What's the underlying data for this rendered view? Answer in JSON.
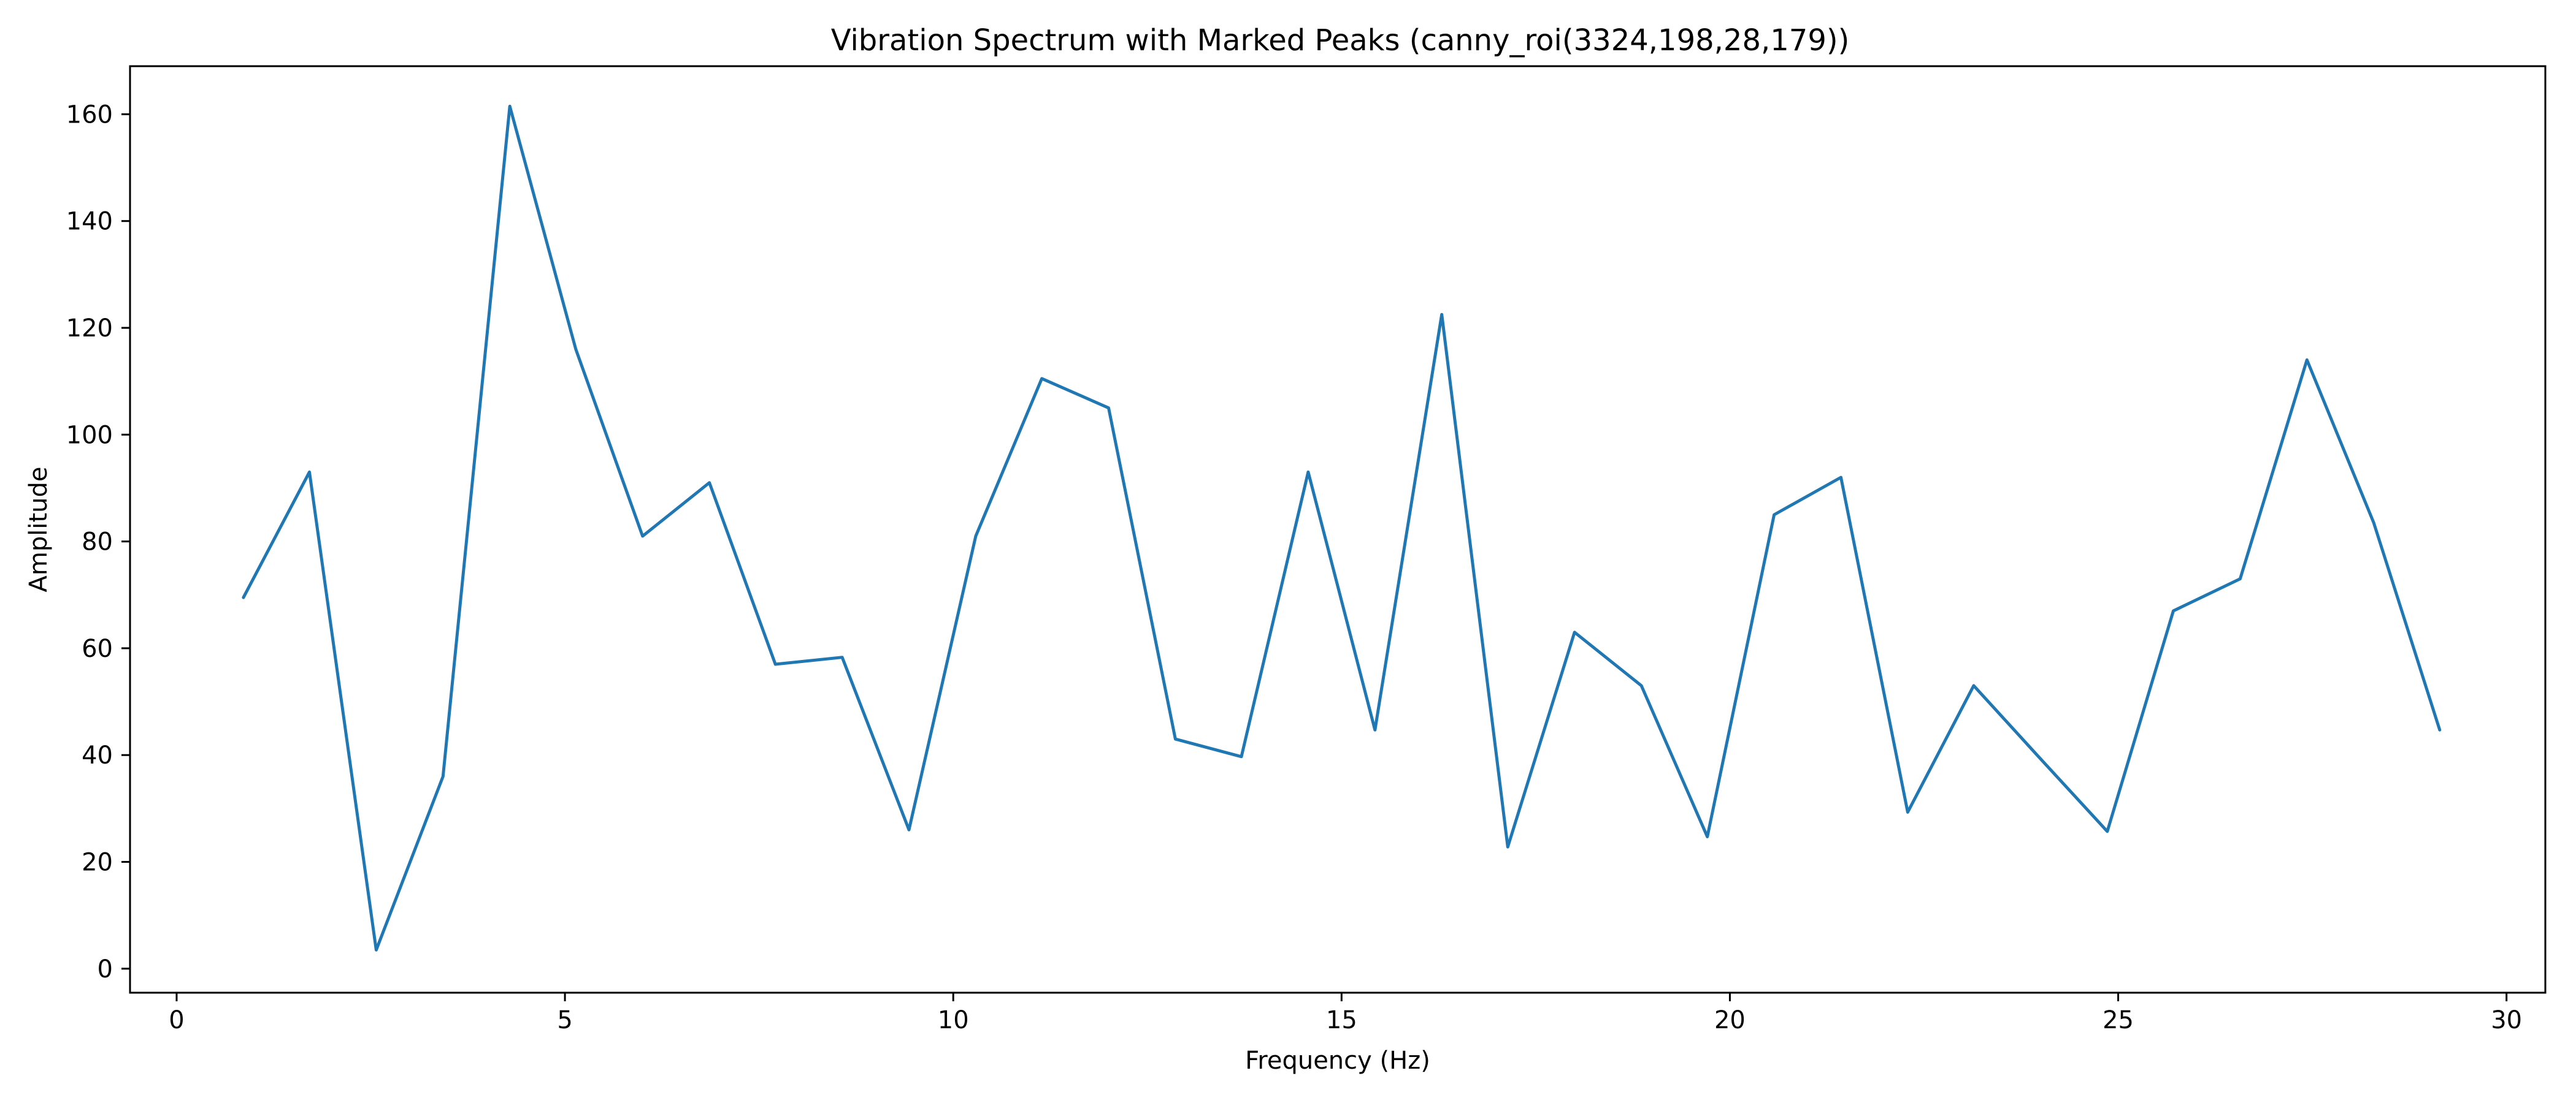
{
  "chart_data": {
    "type": "line",
    "title": "Vibration Spectrum with Marked Peaks (canny_roi(3324,198,28,179))",
    "xlabel": "Frequency (Hz)",
    "ylabel": "Amplitude",
    "xlim": [
      -0.6,
      30.5
    ],
    "ylim": [
      -4.5,
      169
    ],
    "grid": false,
    "x_ticks": [
      0,
      5,
      10,
      15,
      20,
      25,
      30
    ],
    "y_ticks": [
      0,
      20,
      40,
      60,
      80,
      100,
      120,
      140,
      160
    ],
    "series": [
      {
        "color": "#1f77b4",
        "x": [
          0.86,
          1.71,
          2.57,
          3.43,
          4.29,
          5.14,
          6.0,
          6.86,
          7.71,
          8.57,
          9.43,
          10.29,
          11.14,
          12.0,
          12.86,
          13.71,
          14.57,
          15.43,
          16.29,
          17.14,
          18.0,
          18.86,
          19.71,
          20.57,
          21.43,
          22.29,
          23.14,
          24.0,
          24.86,
          25.71,
          26.57,
          27.43,
          28.29,
          29.14
        ],
        "y": [
          69.5,
          93,
          3.5,
          36,
          161.5,
          116,
          81,
          91,
          57,
          58.3,
          26,
          81,
          110.5,
          105,
          43,
          39.7,
          93,
          44.7,
          122.5,
          22.8,
          63,
          53,
          24.7,
          85,
          92,
          29.3,
          53,
          39.3,
          25.7,
          67,
          73,
          114,
          83.5,
          44.7
        ]
      }
    ]
  }
}
